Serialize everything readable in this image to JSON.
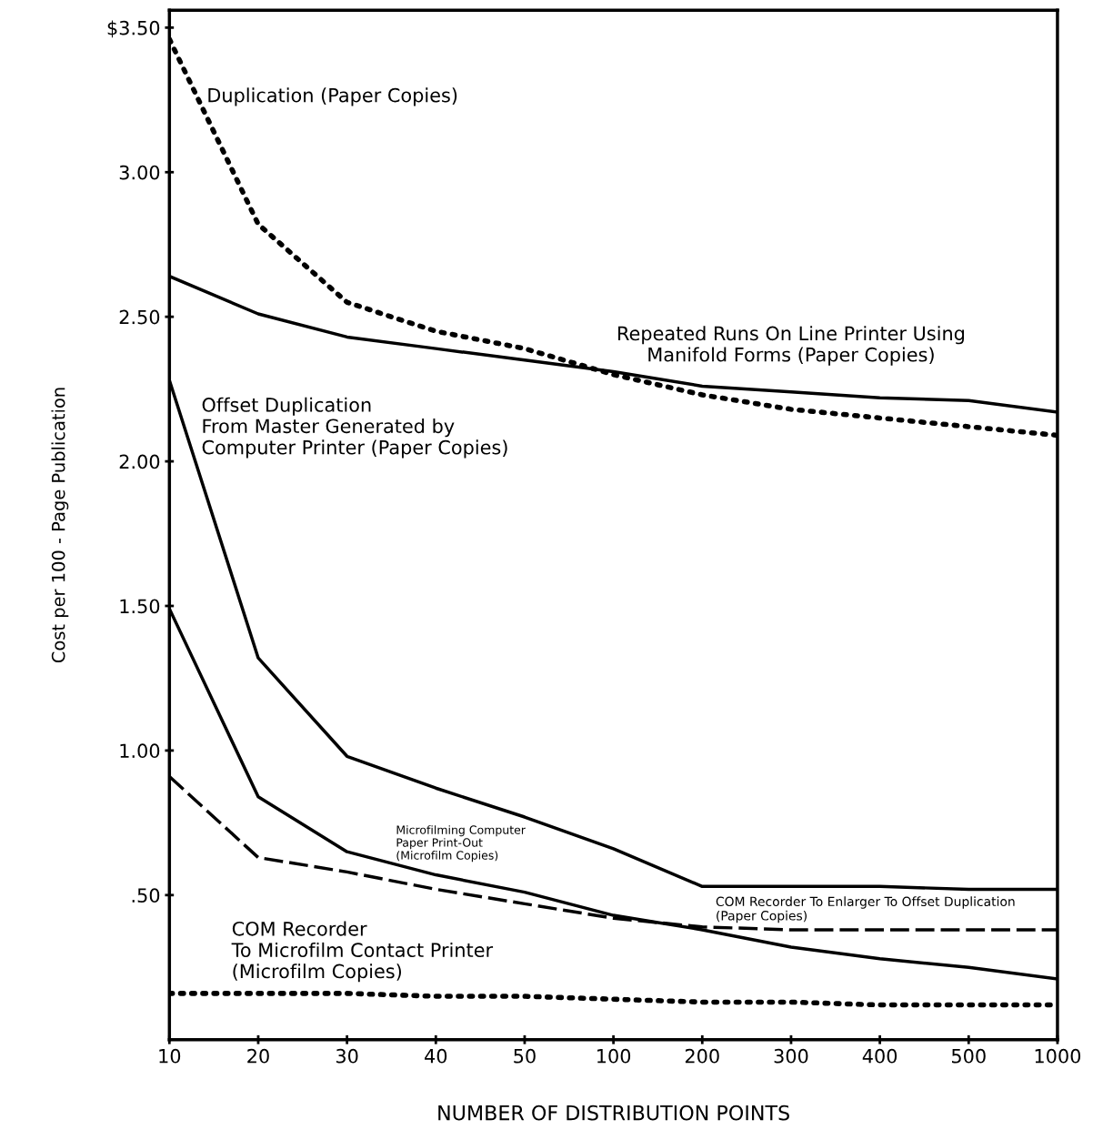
{
  "chart_data": {
    "type": "line",
    "xlabel": "NUMBER OF DISTRIBUTION POINTS",
    "ylabel": "Cost per 100 - Page Publication",
    "categories": [
      "10",
      "20",
      "30",
      "40",
      "50",
      "100",
      "200",
      "300",
      "400",
      "500",
      "1000"
    ],
    "ylim": [
      0,
      3.56
    ],
    "yticks": [
      {
        "value": 3.5,
        "label": "$3.50"
      },
      {
        "value": 3.0,
        "label": "3.00"
      },
      {
        "value": 2.5,
        "label": "2.50"
      },
      {
        "value": 2.0,
        "label": "2.00"
      },
      {
        "value": 1.5,
        "label": "1.50"
      },
      {
        "value": 1.0,
        "label": "1.00"
      },
      {
        "value": 0.5,
        "label": ".50"
      }
    ],
    "grid": false,
    "legend": false,
    "marker": "none",
    "series": [
      {
        "name": "Duplication (Paper Copies)",
        "color": "#000000",
        "line_style": "dotted",
        "values": [
          3.46,
          2.82,
          2.55,
          2.45,
          2.39,
          2.3,
          2.23,
          2.18,
          2.15,
          2.12,
          2.09
        ]
      },
      {
        "name": "Repeated Runs On Line Printer Using\nManifold Forms (Paper Copies)",
        "color": "#000000",
        "line_style": "solid",
        "values": [
          2.64,
          2.51,
          2.43,
          2.39,
          2.35,
          2.31,
          2.26,
          2.24,
          2.22,
          2.21,
          2.17
        ]
      },
      {
        "name": "Offset Duplication\nFrom Master Generated by\nComputer Printer (Paper Copies)",
        "color": "#000000",
        "line_style": "solid",
        "values": [
          2.28,
          1.32,
          0.98,
          0.87,
          0.77,
          0.66,
          0.53,
          0.53,
          0.53,
          0.52,
          0.52
        ]
      },
      {
        "name": "Microfilming Computer\nPaper Print-Out\n(Microfilm Copies)",
        "color": "#000000",
        "line_style": "solid",
        "values": [
          1.49,
          0.84,
          0.65,
          0.57,
          0.51,
          0.43,
          0.38,
          0.32,
          0.28,
          0.25,
          0.21
        ]
      },
      {
        "name": "COM Recorder To Enlarger To Offset Duplication\n(Paper Copies)",
        "color": "#000000",
        "line_style": "dashed",
        "values": [
          0.91,
          0.63,
          0.58,
          0.52,
          0.47,
          0.42,
          0.39,
          0.38,
          0.38,
          0.38,
          0.38
        ]
      },
      {
        "name": "COM Recorder\nTo Microfilm Contact Printer\n(Microfilm Copies)",
        "color": "#000000",
        "line_style": "dotted",
        "values": [
          0.16,
          0.16,
          0.16,
          0.15,
          0.15,
          0.14,
          0.13,
          0.13,
          0.12,
          0.12,
          0.12
        ]
      }
    ]
  }
}
